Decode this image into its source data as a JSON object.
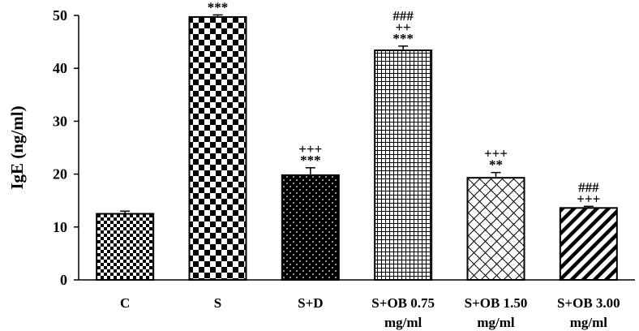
{
  "chart_data": {
    "type": "bar",
    "title": "",
    "xlabel": "",
    "ylabel": "IgE (ng/ml)",
    "ylim": [
      0,
      50
    ],
    "yticks": [
      "0",
      "10",
      "20",
      "30",
      "40",
      "50"
    ],
    "grid": false,
    "categories": [
      [
        "C"
      ],
      [
        "S"
      ],
      [
        "S+D"
      ],
      [
        "S+OB 0.75",
        "mg/ml"
      ],
      [
        "S+OB 1.50",
        "mg/ml"
      ],
      [
        "S+OB 3.00",
        "mg/ml"
      ]
    ],
    "values": [
      12.5,
      49.7,
      19.8,
      43.4,
      19.3,
      13.6
    ],
    "errors": [
      0.5,
      0.4,
      1.4,
      0.8,
      1.0,
      0.3
    ],
    "annotations": [
      [],
      [
        "***"
      ],
      [
        "+++",
        "***"
      ],
      [
        "###",
        "++",
        "***"
      ],
      [
        "+++",
        "**"
      ],
      [
        "###",
        "+++"
      ]
    ],
    "patterns": [
      "small-checker",
      "large-checker",
      "dots",
      "grid",
      "diagonal-hatch",
      "diagonal-stripes"
    ]
  }
}
